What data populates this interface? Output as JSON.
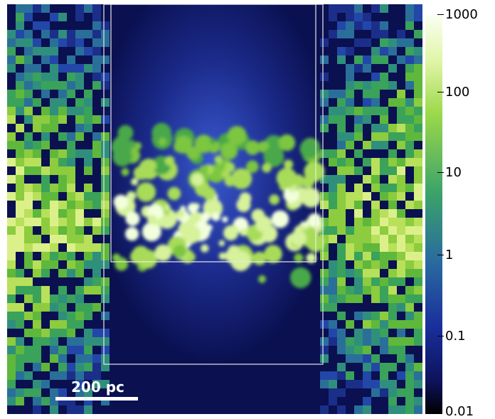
{
  "colors": {
    "background": "#0a1050",
    "frame": "#e8e8e8",
    "bright": "#f6ffe0",
    "green": "#7ac63a",
    "teal": "#2f8f7c",
    "blue": "#1d3fa8"
  },
  "colorbar": {
    "scale": "log",
    "range": [
      0.01,
      1000
    ],
    "ticks": [
      {
        "value": 1000,
        "label": "1000"
      },
      {
        "value": 100,
        "label": "100"
      },
      {
        "value": 10,
        "label": "10"
      },
      {
        "value": 1,
        "label": "1"
      },
      {
        "value": 0.1,
        "label": "0.1"
      },
      {
        "value": 0.01,
        "label": "0.01"
      }
    ]
  },
  "scalebar": {
    "label": "200 pc"
  }
}
